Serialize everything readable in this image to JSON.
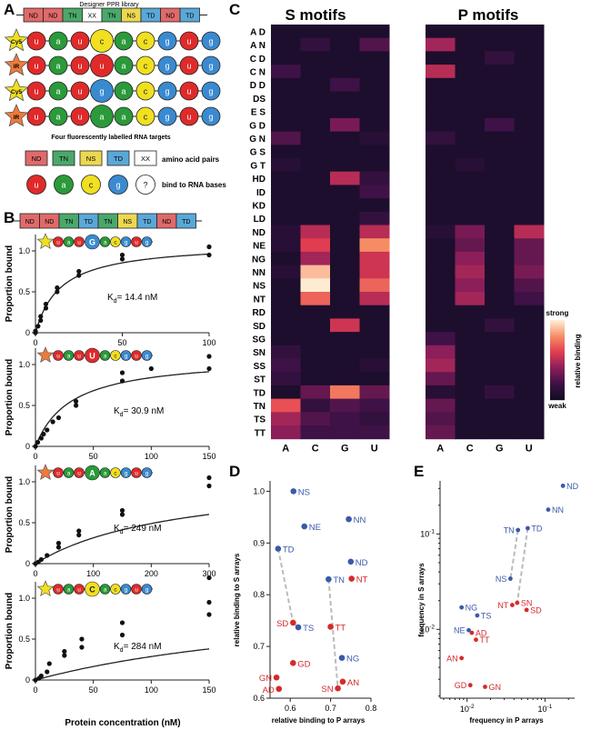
{
  "panel_letters": {
    "a": "A",
    "b": "B",
    "c": "C",
    "d": "D",
    "e": "E"
  },
  "panel_a": {
    "library_title": "Designer PPR library",
    "module_order": [
      "ND",
      "ND",
      "TN",
      "XX",
      "TN",
      "NS",
      "TD",
      "ND",
      "TD"
    ],
    "probe_labels": [
      "Cy5",
      "IR",
      "Cy5",
      "IR"
    ],
    "rna_rows": [
      [
        "u",
        "a",
        "u",
        "c",
        "a",
        "c",
        "g",
        "u",
        "g"
      ],
      [
        "u",
        "a",
        "u",
        "u",
        "a",
        "c",
        "g",
        "u",
        "g"
      ],
      [
        "u",
        "a",
        "u",
        "g",
        "a",
        "c",
        "g",
        "u",
        "g"
      ],
      [
        "u",
        "a",
        "u",
        "a",
        "a",
        "c",
        "g",
        "u",
        "g"
      ]
    ],
    "rna_caption": "Four fluorescently labelled RNA targets",
    "legend_pairs": [
      "ND",
      "TN",
      "NS",
      "TD",
      "XX"
    ],
    "legend_pairs_label": "amino acid pairs",
    "legend_bases": [
      "u",
      "a",
      "c",
      "g",
      "?"
    ],
    "legend_bases_label": "bind to RNA bases"
  },
  "panel_b": {
    "module_order": [
      "ND",
      "ND",
      "TN",
      "TD",
      "TN",
      "NS",
      "TD",
      "ND",
      "TD"
    ],
    "plots": [
      {
        "probe": "Cy5",
        "target": [
          "u",
          "a",
          "u",
          "G",
          "a",
          "c",
          "g",
          "u",
          "g"
        ],
        "variable_index": 3,
        "kd_text": "14.4 nM",
        "kd": 14.4,
        "xmax": 100,
        "xticks": [
          0,
          50,
          100
        ],
        "ymax": 1.2,
        "points": [
          [
            0,
            0
          ],
          [
            0,
            0.02
          ],
          [
            1.5,
            0.08
          ],
          [
            3,
            0.15
          ],
          [
            3,
            0.2
          ],
          [
            6,
            0.3
          ],
          [
            6,
            0.35
          ],
          [
            12.5,
            0.5
          ],
          [
            12.5,
            0.55
          ],
          [
            25,
            0.7
          ],
          [
            25,
            0.75
          ],
          [
            50,
            0.9
          ],
          [
            50,
            0.95
          ],
          [
            100,
            0.95
          ],
          [
            100,
            1.05
          ]
        ]
      },
      {
        "probe": "IR",
        "target": [
          "u",
          "a",
          "u",
          "U",
          "a",
          "c",
          "g",
          "u",
          "g"
        ],
        "variable_index": 3,
        "kd_text": "30.9 nM",
        "kd": 30.9,
        "xmax": 150,
        "xticks": [
          0,
          50,
          100,
          150
        ],
        "ymax": 1.2,
        "points": [
          [
            0,
            0
          ],
          [
            2,
            0.05
          ],
          [
            5,
            0.1
          ],
          [
            7,
            0.15
          ],
          [
            10,
            0.2
          ],
          [
            15,
            0.3
          ],
          [
            20,
            0.35
          ],
          [
            35,
            0.5
          ],
          [
            35,
            0.55
          ],
          [
            75,
            0.8
          ],
          [
            75,
            0.9
          ],
          [
            100,
            0.95
          ],
          [
            150,
            0.95
          ],
          [
            150,
            1.1
          ]
        ]
      },
      {
        "probe": "IR",
        "target": [
          "u",
          "a",
          "u",
          "A",
          "a",
          "c",
          "g",
          "u",
          "g"
        ],
        "variable_index": 3,
        "kd_text": "249 nM",
        "kd": 249,
        "xmax": 300,
        "xticks": [
          0,
          100,
          200,
          300
        ],
        "ymax": 1.2,
        "points": [
          [
            0,
            0
          ],
          [
            5,
            0.02
          ],
          [
            10,
            0.05
          ],
          [
            20,
            0.1
          ],
          [
            40,
            0.2
          ],
          [
            40,
            0.25
          ],
          [
            75,
            0.35
          ],
          [
            75,
            0.4
          ],
          [
            150,
            0.6
          ],
          [
            150,
            0.65
          ],
          [
            300,
            0.95
          ],
          [
            300,
            1.05
          ]
        ]
      },
      {
        "probe": "Cy5",
        "target": [
          "u",
          "a",
          "u",
          "C",
          "a",
          "c",
          "g",
          "u",
          "g"
        ],
        "variable_index": 3,
        "kd_text": "284 nM",
        "kd": 284,
        "xmax": 150,
        "xticks": [
          0,
          50,
          100,
          150
        ],
        "ymax": 1.2,
        "points": [
          [
            0,
            0
          ],
          [
            3,
            0.02
          ],
          [
            5,
            0.05
          ],
          [
            10,
            0.1
          ],
          [
            12,
            0.2
          ],
          [
            25,
            0.3
          ],
          [
            25,
            0.35
          ],
          [
            40,
            0.4
          ],
          [
            40,
            0.5
          ],
          [
            75,
            0.55
          ],
          [
            75,
            0.7
          ],
          [
            150,
            0.8
          ],
          [
            150,
            0.95
          ],
          [
            150,
            1.25
          ]
        ]
      }
    ],
    "yticks": [
      "0",
      "0.5",
      "1.0"
    ],
    "ylabel": "Proportion bound",
    "xlabel": "Protein concentration (nM)",
    "kd_prefix": "K",
    "kd_sub": "d",
    "kd_eq": "= "
  },
  "chart_data": [
    {
      "type": "heatmap",
      "title": "S motifs",
      "rows": [
        "A D",
        "A N",
        "C D",
        "C N",
        "D D",
        "DS",
        "E S",
        "G D",
        "G N",
        "G S",
        "G T",
        "HD",
        "ID",
        "KD",
        "LD",
        "ND",
        "NE",
        "NG",
        "NN",
        "NS",
        "NT",
        "RD",
        "SD",
        "SG",
        "SN",
        "SS",
        "ST",
        "TD",
        "TN",
        "TS",
        "TT"
      ],
      "columns": [
        "A",
        "C",
        "G",
        "U"
      ],
      "values": [
        [
          0.05,
          0.05,
          0.05,
          0.05
        ],
        [
          0.05,
          0.15,
          0.05,
          0.25
        ],
        [
          0.05,
          0.05,
          0.05,
          0.05
        ],
        [
          0.2,
          0.05,
          0.05,
          0.05
        ],
        [
          0.05,
          0.05,
          0.2,
          0.05
        ],
        [
          0.05,
          0.05,
          0.05,
          0.05
        ],
        [
          0.05,
          0.05,
          0.05,
          0.05
        ],
        [
          0.05,
          0.05,
          0.35,
          0.05
        ],
        [
          0.25,
          0.05,
          0.05,
          0.1
        ],
        [
          0.05,
          0.05,
          0.05,
          0.05
        ],
        [
          0.1,
          0.05,
          0.05,
          0.05
        ],
        [
          0.05,
          0.05,
          0.5,
          0.15
        ],
        [
          0.05,
          0.05,
          0.05,
          0.2
        ],
        [
          0.05,
          0.05,
          0.05,
          0.05
        ],
        [
          0.05,
          0.05,
          0.05,
          0.15
        ],
        [
          0.1,
          0.5,
          0.05,
          0.5
        ],
        [
          0.1,
          0.6,
          0.05,
          0.8
        ],
        [
          0.05,
          0.45,
          0.05,
          0.55
        ],
        [
          0.1,
          0.9,
          0.05,
          0.55
        ],
        [
          0.05,
          1.0,
          0.05,
          0.7
        ],
        [
          0.05,
          0.7,
          0.05,
          0.5
        ],
        [
          0.05,
          0.05,
          0.05,
          0.05
        ],
        [
          0.05,
          0.05,
          0.55,
          0.05
        ],
        [
          0.05,
          0.05,
          0.05,
          0.05
        ],
        [
          0.15,
          0.05,
          0.05,
          0.05
        ],
        [
          0.2,
          0.05,
          0.05,
          0.1
        ],
        [
          0.15,
          0.05,
          0.05,
          0.05
        ],
        [
          0.05,
          0.3,
          0.75,
          0.3
        ],
        [
          0.65,
          0.15,
          0.25,
          0.2
        ],
        [
          0.45,
          0.25,
          0.2,
          0.15
        ],
        [
          0.4,
          0.2,
          0.2,
          0.2
        ]
      ]
    },
    {
      "type": "heatmap",
      "title": "P motifs",
      "rows": [
        "A D",
        "A N",
        "C D",
        "C N",
        "D D",
        "DS",
        "E S",
        "G D",
        "G N",
        "G S",
        "G T",
        "HD",
        "ID",
        "KD",
        "LD",
        "ND",
        "NE",
        "NG",
        "NN",
        "NS",
        "NT",
        "RD",
        "SD",
        "SG",
        "SN",
        "SS",
        "ST",
        "TD",
        "TN",
        "TS",
        "TT"
      ],
      "columns": [
        "A",
        "C",
        "G",
        "U"
      ],
      "values": [
        [
          0.05,
          0.05,
          0.05,
          0.05
        ],
        [
          0.45,
          0.05,
          0.05,
          0.05
        ],
        [
          0.05,
          0.05,
          0.15,
          0.05
        ],
        [
          0.5,
          0.05,
          0.05,
          0.05
        ],
        [
          0.05,
          0.05,
          0.05,
          0.05
        ],
        [
          0.05,
          0.05,
          0.05,
          0.05
        ],
        [
          0.05,
          0.05,
          0.05,
          0.05
        ],
        [
          0.05,
          0.05,
          0.2,
          0.05
        ],
        [
          0.15,
          0.05,
          0.05,
          0.05
        ],
        [
          0.05,
          0.05,
          0.05,
          0.05
        ],
        [
          0.05,
          0.1,
          0.05,
          0.05
        ],
        [
          0.05,
          0.05,
          0.05,
          0.05
        ],
        [
          0.05,
          0.05,
          0.05,
          0.05
        ],
        [
          0.05,
          0.05,
          0.05,
          0.05
        ],
        [
          0.05,
          0.05,
          0.05,
          0.05
        ],
        [
          0.1,
          0.35,
          0.05,
          0.5
        ],
        [
          0.05,
          0.3,
          0.05,
          0.3
        ],
        [
          0.05,
          0.4,
          0.05,
          0.3
        ],
        [
          0.05,
          0.45,
          0.05,
          0.35
        ],
        [
          0.05,
          0.4,
          0.05,
          0.25
        ],
        [
          0.05,
          0.45,
          0.05,
          0.2
        ],
        [
          0.05,
          0.05,
          0.05,
          0.05
        ],
        [
          0.05,
          0.05,
          0.15,
          0.05
        ],
        [
          0.2,
          0.05,
          0.05,
          0.05
        ],
        [
          0.4,
          0.05,
          0.05,
          0.05
        ],
        [
          0.45,
          0.05,
          0.05,
          0.05
        ],
        [
          0.3,
          0.05,
          0.05,
          0.05
        ],
        [
          0.1,
          0.05,
          0.15,
          0.05
        ],
        [
          0.3,
          0.05,
          0.05,
          0.05
        ],
        [
          0.25,
          0.05,
          0.05,
          0.05
        ],
        [
          0.3,
          0.05,
          0.05,
          0.05
        ]
      ]
    },
    {
      "type": "scatter",
      "xlabel": "relative binding to P arrays",
      "ylabel": "relative binding to S arrays",
      "xlim": [
        0.55,
        0.8
      ],
      "ylim": [
        0.6,
        1.02
      ],
      "xticks": [
        "0.6",
        "0.7",
        "0.8"
      ],
      "yticks": [
        "0.6",
        "0.7",
        "0.8",
        "0.9",
        "1.0"
      ],
      "points": [
        {
          "label": "NS",
          "x": 0.608,
          "y": 1.0,
          "group": "blue"
        },
        {
          "label": "NE",
          "x": 0.635,
          "y": 0.932,
          "group": "blue"
        },
        {
          "label": "NN",
          "x": 0.745,
          "y": 0.946,
          "group": "blue"
        },
        {
          "label": "TD",
          "x": 0.57,
          "y": 0.889,
          "group": "blue"
        },
        {
          "label": "ND",
          "x": 0.75,
          "y": 0.864,
          "group": "blue"
        },
        {
          "label": "TN",
          "x": 0.695,
          "y": 0.83,
          "group": "blue"
        },
        {
          "label": "TS",
          "x": 0.62,
          "y": 0.737,
          "group": "blue"
        },
        {
          "label": "NG",
          "x": 0.728,
          "y": 0.678,
          "group": "blue"
        },
        {
          "label": "NT",
          "x": 0.752,
          "y": 0.831,
          "group": "red"
        },
        {
          "label": "SD",
          "x": 0.607,
          "y": 0.746,
          "group": "red"
        },
        {
          "label": "TT",
          "x": 0.7,
          "y": 0.738,
          "group": "red"
        },
        {
          "label": "GD",
          "x": 0.607,
          "y": 0.668,
          "group": "red"
        },
        {
          "label": "GN",
          "x": 0.566,
          "y": 0.64,
          "group": "red"
        },
        {
          "label": "AD",
          "x": 0.572,
          "y": 0.618,
          "group": "red"
        },
        {
          "label": "AN",
          "x": 0.73,
          "y": 0.632,
          "group": "red"
        },
        {
          "label": "SN",
          "x": 0.718,
          "y": 0.619,
          "group": "red"
        }
      ],
      "dashed_links": [
        [
          "TD",
          "SD"
        ],
        [
          "TS",
          "SD"
        ],
        [
          "TN",
          "SN"
        ]
      ]
    },
    {
      "type": "scatter",
      "xlabel": "frequency in P arrays",
      "ylabel": "frequency in S arrays",
      "xscale": "log",
      "yscale": "log",
      "xticks_major": [
        0.01,
        0.1
      ],
      "yticks_major": [
        0.01,
        0.1
      ],
      "xtick_labels": [
        [
          "10",
          "-2"
        ],
        [
          "10",
          "-1"
        ]
      ],
      "ytick_labels": [
        [
          "10",
          "-2"
        ],
        [
          "10",
          "-1"
        ]
      ],
      "points": [
        {
          "label": "ND",
          "x": 0.17,
          "y": 0.32,
          "group": "blue"
        },
        {
          "label": "NN",
          "x": 0.11,
          "y": 0.18,
          "group": "blue"
        },
        {
          "label": "TN",
          "x": 0.045,
          "y": 0.11,
          "group": "blue"
        },
        {
          "label": "TD",
          "x": 0.06,
          "y": 0.115,
          "group": "blue"
        },
        {
          "label": "NS",
          "x": 0.036,
          "y": 0.034,
          "group": "blue"
        },
        {
          "label": "NG",
          "x": 0.0085,
          "y": 0.017,
          "group": "blue"
        },
        {
          "label": "TS",
          "x": 0.0135,
          "y": 0.014,
          "group": "blue"
        },
        {
          "label": "NE",
          "x": 0.0105,
          "y": 0.0098,
          "group": "blue"
        },
        {
          "label": "NT",
          "x": 0.038,
          "y": 0.018,
          "group": "red"
        },
        {
          "label": "SN",
          "x": 0.044,
          "y": 0.019,
          "group": "red"
        },
        {
          "label": "SD",
          "x": 0.058,
          "y": 0.016,
          "group": "red"
        },
        {
          "label": "AD",
          "x": 0.0115,
          "y": 0.0092,
          "group": "red"
        },
        {
          "label": "TT",
          "x": 0.013,
          "y": 0.0078,
          "group": "red"
        },
        {
          "label": "AN",
          "x": 0.0085,
          "y": 0.005,
          "group": "red"
        },
        {
          "label": "GD",
          "x": 0.011,
          "y": 0.0026,
          "group": "red"
        },
        {
          "label": "GN",
          "x": 0.017,
          "y": 0.0025,
          "group": "red"
        }
      ],
      "dashed_links": [
        [
          "TN",
          "NS"
        ],
        [
          "TD",
          "SN"
        ]
      ]
    }
  ],
  "colorbar": {
    "top_label": "strong",
    "bottom_label": "weak",
    "title": "relative binding"
  },
  "colors": {
    "module_ND": "#e06a6a",
    "module_TN": "#4aa86a",
    "module_NS": "#ecd850",
    "module_TD": "#5aa8d8",
    "module_XX": "#ffffff",
    "base_u": "#e02a2a",
    "base_a": "#2a9a3a",
    "base_c": "#f0e020",
    "base_g": "#3a8ad0",
    "base_q": "#ffffff",
    "star_Cy5": "#f0e020",
    "star_IR": "#f07a3a",
    "blue": "#3a5aa8",
    "red": "#d62a2a",
    "dash": "#bbbbbb"
  }
}
